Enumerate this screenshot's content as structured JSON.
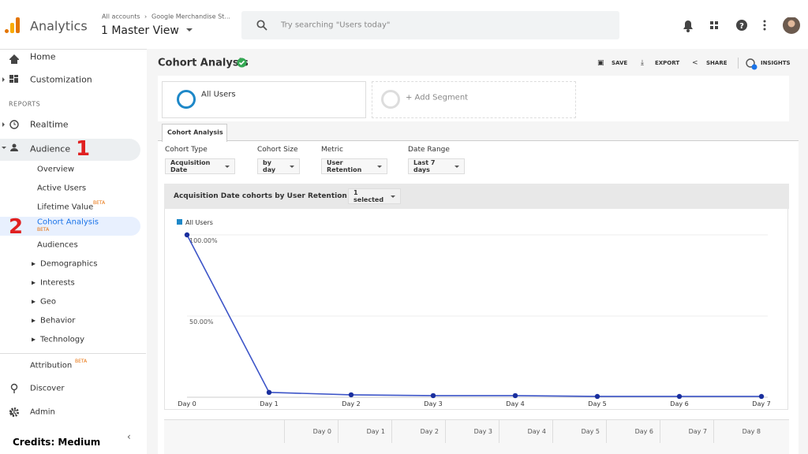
{
  "topbar": {
    "brand": "Analytics",
    "accounts": "All accounts",
    "property": "Google Merchandise St...",
    "view": "1 Master View",
    "search": "Try searching \"Users today\""
  },
  "sidebar": {
    "home": "Home",
    "customization": "Customization",
    "section": "REPORTS",
    "realtime": "Realtime",
    "audience": "Audience",
    "overview": "Overview",
    "active_users": "Active Users",
    "lifetime_value": "Lifetime Value",
    "lifetime_badge": "BETA",
    "cohort": "Cohort Analysis",
    "cohort_badge": "BETA",
    "audiences": "Audiences",
    "demographics": "Demographics",
    "interests": "Interests",
    "geo": "Geo",
    "behavior": "Behavior",
    "technology": "Technology",
    "attribution": "Attribution",
    "attribution_badge": "BETA",
    "discover": "Discover",
    "admin": "Admin"
  },
  "annotations": [
    "1",
    "2"
  ],
  "credits": "Credits: Medium",
  "header": {
    "title": "Cohort Analysis",
    "actions": [
      "SAVE",
      "EXPORT",
      "SHARE",
      "INSIGHTS"
    ]
  },
  "segments": [
    "All Users",
    "+ Add Segment"
  ],
  "tab": "Cohort Analysis",
  "controls": [
    {
      "label": "Cohort Type",
      "value": "Acquisition Date"
    },
    {
      "label": "Cohort Size",
      "value": "by day"
    },
    {
      "label": "Metric",
      "value": "User Retention"
    },
    {
      "label": "Date Range",
      "value": "Last 7 days"
    }
  ],
  "panel": {
    "title": "Acquisition Date cohorts by User Retention",
    "selector": "1 selected"
  },
  "chart_data": {
    "type": "line",
    "categories": [
      "Day 0",
      "Day 1",
      "Day 2",
      "Day 3",
      "Day 4",
      "Day 5",
      "Day 6",
      "Day 7"
    ],
    "series": [
      {
        "name": "All Users",
        "color": "#3d55c8",
        "values": [
          100,
          3,
          1.5,
          1,
          1,
          0.5,
          0.5,
          0.5
        ]
      }
    ],
    "ylim": [
      0,
      100
    ],
    "yticks": [
      {
        "value": 100,
        "label": "100.00%"
      },
      {
        "value": 50,
        "label": "50.00%"
      }
    ],
    "grid": true,
    "legend": "top-left"
  },
  "table": {
    "header": [
      "Day 0",
      "Day 1",
      "Day 2",
      "Day 3",
      "Day 4",
      "Day 5",
      "Day 6",
      "Day 7",
      "Day 8"
    ]
  }
}
